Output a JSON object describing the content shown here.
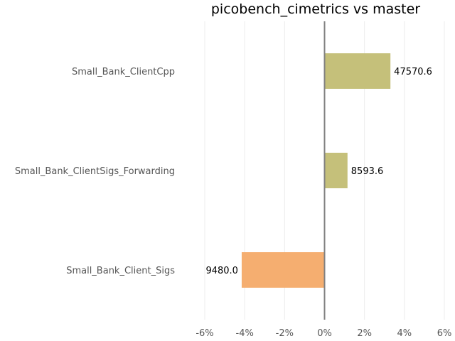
{
  "chart_data": {
    "type": "bar",
    "orientation": "horizontal",
    "title": "picobench_cimetrics vs master",
    "xlabel": "",
    "ylabel": "",
    "categories": [
      "Small_Bank_ClientCpp",
      "Small_Bank_ClientSigs_Forwarding",
      "Small_Bank_Client_Sigs"
    ],
    "values": [
      3.3,
      1.15,
      -4.15
    ],
    "data_labels": [
      "47570.6",
      "8593.6",
      "9480.0"
    ],
    "colors": [
      "#c5c07a",
      "#c5c07a",
      "#f5ae70"
    ],
    "xlim": [
      -6,
      6
    ],
    "xticks": [
      -6,
      -4,
      -2,
      0,
      2,
      4,
      6
    ],
    "xtick_labels": [
      "-6%",
      "-4%",
      "-2%",
      "0%",
      "2%",
      "4%",
      "6%"
    ],
    "grid": true,
    "legend": "none"
  }
}
